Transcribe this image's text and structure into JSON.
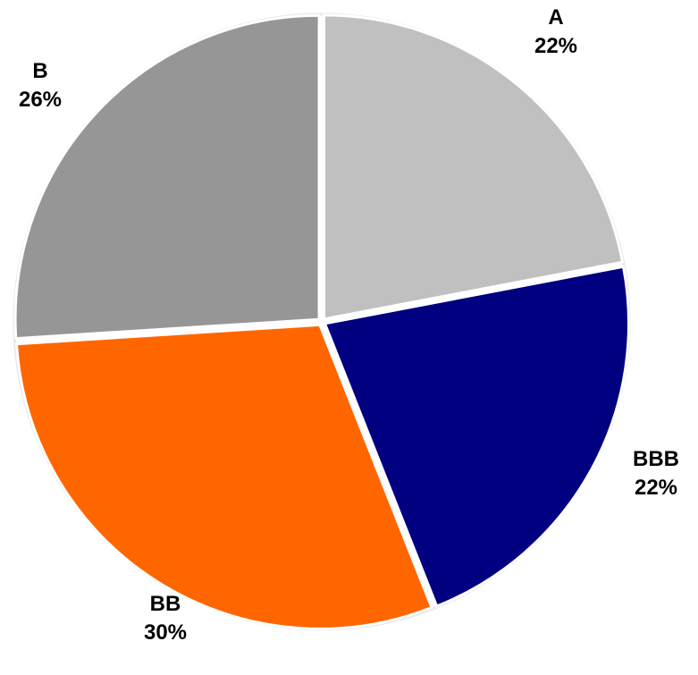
{
  "chart_data": {
    "type": "pie",
    "title": "",
    "slices": [
      {
        "label": "A",
        "value": 22,
        "value_label": "22%",
        "color": "#c0c0c0"
      },
      {
        "label": "BBB",
        "value": 22,
        "value_label": "22%",
        "color": "#000080"
      },
      {
        "label": "BB",
        "value": 30,
        "value_label": "30%",
        "color": "#ff6600"
      },
      {
        "label": "B",
        "value": 26,
        "value_label": "26%",
        "color": "#969696"
      }
    ],
    "start": "12 o'clock",
    "direction": "clockwise",
    "legend": "none",
    "separator_color": "#ffffff",
    "outline_color": "#e6e6e6"
  }
}
